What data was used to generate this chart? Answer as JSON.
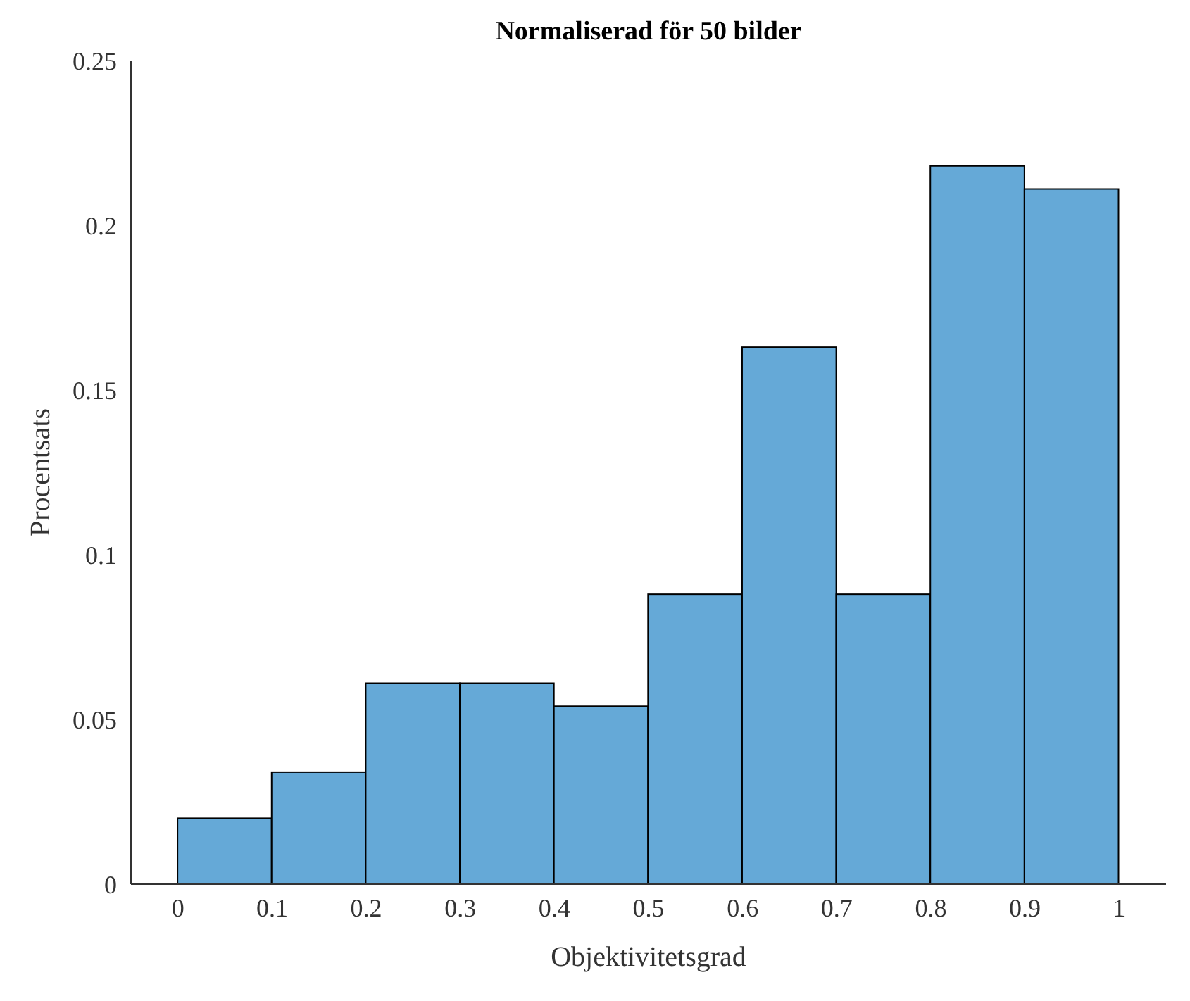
{
  "chart_data": {
    "type": "histogram",
    "title": "Normaliserad för 50 bilder",
    "xlabel": "Objektivitetsgrad",
    "ylabel": "Procentsats",
    "bins": [
      0,
      0.1,
      0.2,
      0.3,
      0.4,
      0.5,
      0.6,
      0.7,
      0.8,
      0.9,
      1
    ],
    "values": [
      0.02,
      0.034,
      0.061,
      0.061,
      0.054,
      0.088,
      0.163,
      0.088,
      0.218,
      0.211
    ],
    "color": "#65a9d7",
    "xlim": [
      -0.05,
      1.05
    ],
    "xticks": [
      0,
      0.1,
      0.2,
      0.3,
      0.4,
      0.5,
      0.6,
      0.7,
      0.8,
      0.9,
      1
    ],
    "ylim": [
      0,
      0.25
    ],
    "yticks": [
      0,
      0.05,
      0.1,
      0.15,
      0.2,
      0.25
    ]
  }
}
